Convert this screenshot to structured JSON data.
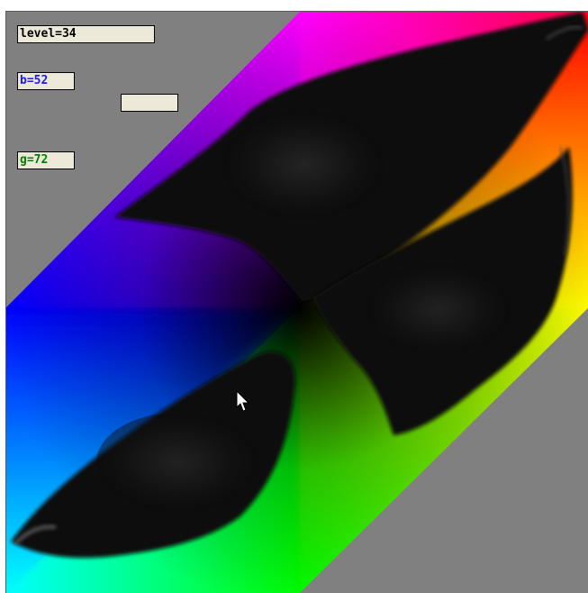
{
  "window": {
    "background": "#ffffff",
    "plot_background": "#808080"
  },
  "readouts": {
    "level": {
      "text": "level=34",
      "color": "#000000"
    },
    "b": {
      "text": "b=52",
      "color": "#1a1aff"
    },
    "blank": {
      "text": "",
      "color": "#000000"
    },
    "g": {
      "text": "g=72",
      "color": "#008000"
    }
  },
  "plot": {
    "description_colors": {
      "magenta": "#ff00ff",
      "red": "#ff0000",
      "yellow": "#ffff00",
      "green": "#00ff00",
      "cyan": "#00ffff",
      "blue": "#0000ff",
      "dark_center": "#0a0a0a"
    }
  },
  "cursor": {
    "icon": "arrow-cursor-icon"
  }
}
